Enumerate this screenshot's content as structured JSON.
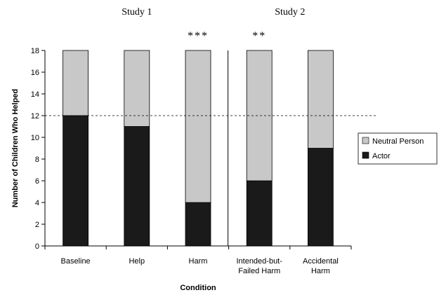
{
  "chart_data": {
    "type": "bar",
    "stacked": true,
    "categories": [
      [
        "Baseline"
      ],
      [
        "Help"
      ],
      [
        "Harm"
      ],
      [
        "Intended-but-",
        "Failed Harm"
      ],
      [
        "Accidental",
        "Harm"
      ]
    ],
    "series": [
      {
        "name": "Actor",
        "color": "#1a1a1a",
        "values": [
          12,
          11,
          4,
          6,
          9
        ]
      },
      {
        "name": "Neutral Person",
        "color": "#c8c8c8",
        "values": [
          6,
          7,
          14,
          12,
          9
        ]
      }
    ],
    "legend_order": [
      "Neutral Person",
      "Actor"
    ],
    "legend_position": "right",
    "xlabel": "Condition",
    "ylabel": "Number of Children Who Helped",
    "ylim": [
      0,
      18
    ],
    "yticks": [
      0,
      2,
      4,
      6,
      8,
      10,
      12,
      14,
      16,
      18
    ],
    "reference_line": 12,
    "groups": [
      {
        "label": "Study 1",
        "from": 0,
        "to": 2
      },
      {
        "label": "Study 2",
        "from": 3,
        "to": 4
      }
    ],
    "significance": [
      {
        "category": 2,
        "label": "***"
      },
      {
        "category": 3,
        "label": "**"
      }
    ],
    "grid": false
  }
}
